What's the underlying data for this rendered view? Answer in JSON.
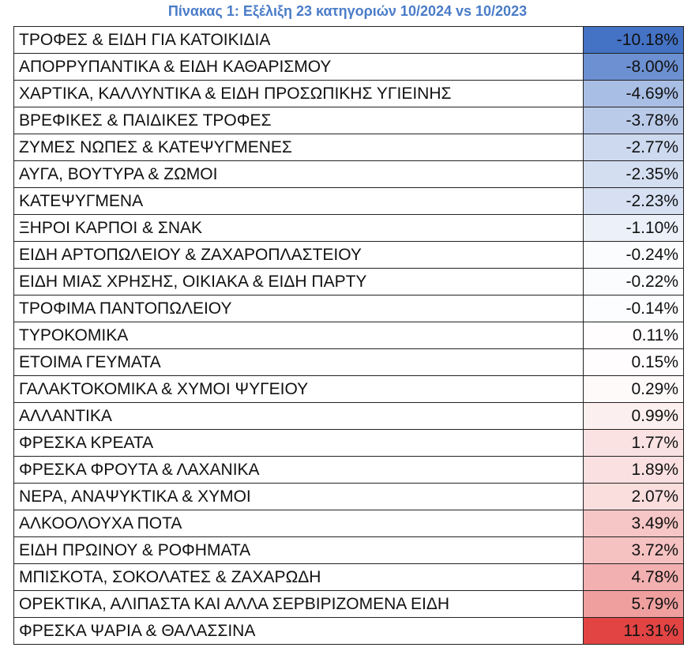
{
  "title": "Πίνακας 1: Εξέλιξη 23 κατηγοριών 10/2024 vs 10/2023",
  "table": {
    "rows": [
      [
        "ΤΡΟΦΕΣ & ΕΙΔΗ ΓΙΑ ΚΑΤΟΙΚΙΔΙΑ",
        "-10.18%"
      ],
      [
        "ΑΠΟΡΡΥΠΑΝΤΙΚΑ & ΕΙΔΗ ΚΑΘΑΡΙΣΜΟΥ",
        "-8.00%"
      ],
      [
        "ΧΑΡΤΙΚΑ, ΚΑΛΛΥΝΤΙΚΑ & ΕΙΔΗ ΠΡΟΣΩΠΙΚΗΣ ΥΓΙΕΙΝΗΣ",
        "-4.69%"
      ],
      [
        "ΒΡΕΦΙΚΕΣ & ΠΑΙΔΙΚΕΣ ΤΡΟΦΕΣ",
        "-3.78%"
      ],
      [
        "ΖΥΜΕΣ ΝΩΠΕΣ & ΚΑΤΕΨΥΓΜΕΝΕΣ",
        "-2.77%"
      ],
      [
        "ΑΥΓΑ, ΒΟΥΤΥΡΑ & ΖΩΜΟΙ",
        "-2.35%"
      ],
      [
        "ΚΑΤΕΨΥΓΜΕΝΑ",
        "-2.23%"
      ],
      [
        "ΞΗΡΟΙ ΚΑΡΠΟΙ & ΣΝΑΚ",
        "-1.10%"
      ],
      [
        "ΕΙΔΗ ΑΡΤΟΠΩΛΕΙΟΥ & ΖΑΧΑΡΟΠΛΑΣΤΕΙΟΥ",
        "-0.24%"
      ],
      [
        "ΕΙΔΗ ΜΙΑΣ ΧΡΗΣΗΣ, ΟΙΚΙΑΚΑ & ΕΙΔΗ ΠΑΡΤΥ",
        "-0.22%"
      ],
      [
        "ΤΡΟΦΙΜΑ ΠΑΝΤΟΠΩΛΕΙΟΥ",
        "-0.14%"
      ],
      [
        "ΤΥΡΟΚΟΜΙΚΑ",
        "0.11%"
      ],
      [
        "ΕΤΟΙΜΑ ΓΕΥΜΑΤΑ",
        "0.15%"
      ],
      [
        "ΓΑΛΑΚΤΟΚΟΜΙΚΑ & ΧΥΜΟΙ ΨΥΓΕΙΟΥ",
        "0.29%"
      ],
      [
        "ΑΛΛΑΝΤΙΚΑ",
        "0.99%"
      ],
      [
        "ΦΡΕΣΚΑ ΚΡΕΑΤΑ",
        "1.77%"
      ],
      [
        "ΦΡΕΣΚΑ ΦΡΟΥΤΑ & ΛΑΧΑΝΙΚΑ",
        "1.89%"
      ],
      [
        "ΝΕΡΑ, ΑΝΑΨΥΚΤΙΚΑ & ΧΥΜΟΙ",
        "2.07%"
      ],
      [
        "ΑΛΚΟΟΛΟΥΧΑ ΠΟΤΑ",
        "3.49%"
      ],
      [
        "ΕΙΔΗ ΠΡΩΙΝΟΥ & ΡΟΦΗΜΑΤΑ",
        "3.72%"
      ],
      [
        "ΜΠΙΣΚΟΤΑ, ΣΟΚΟΛΑΤΕΣ & ΖΑΧΑΡΩΔΗ",
        "4.78%"
      ],
      [
        "ΟΡΕΚΤΙΚΑ, ΑΛΙΠΑΣΤΑ ΚΑΙ ΑΛΛΑ ΣΕΡΒΙΡΙΖΟΜΕΝΑ ΕΙΔΗ",
        "5.79%"
      ],
      [
        "ΦΡΕΣΚΑ ΨΑΡΙΑ & ΘΑΛΑΣΣΙΝΑ",
        "11.31%"
      ]
    ]
  }
}
